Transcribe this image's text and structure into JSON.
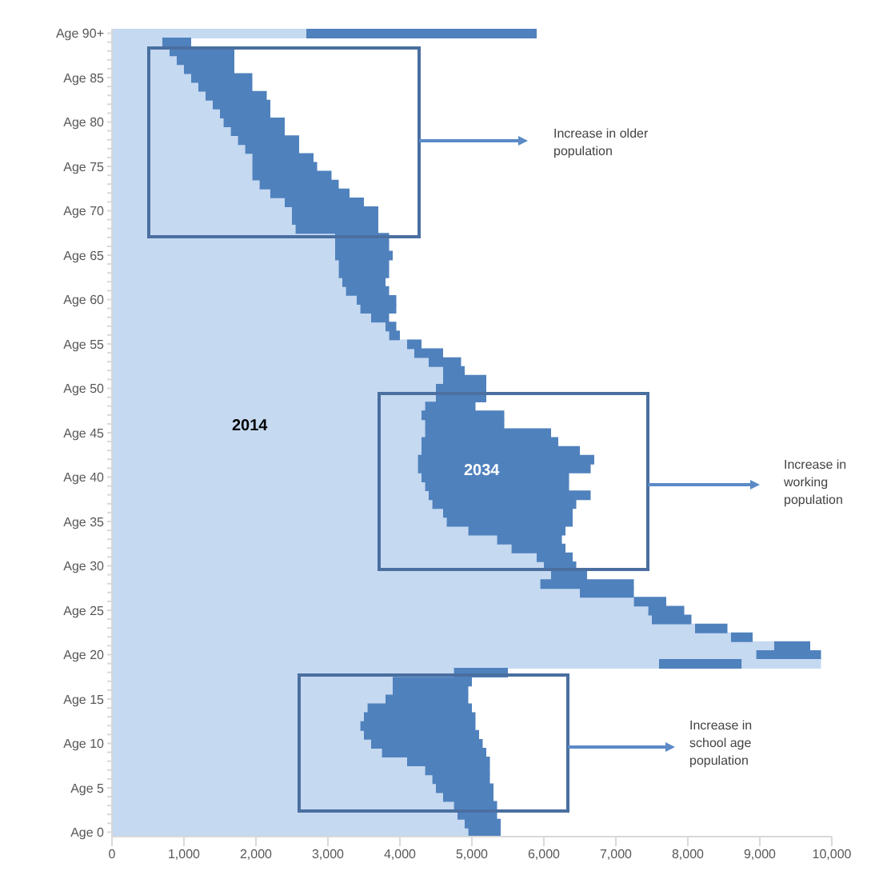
{
  "chart_data": {
    "type": "bar",
    "orientation": "horizontal",
    "stacked": true,
    "categories": [
      "Age 90+",
      null,
      null,
      null,
      null,
      "Age 85",
      null,
      null,
      null,
      null,
      "Age 80",
      null,
      null,
      null,
      null,
      "Age 75",
      null,
      null,
      null,
      null,
      "Age 70",
      null,
      null,
      null,
      null,
      "Age 65",
      null,
      null,
      null,
      null,
      "Age 60",
      null,
      null,
      null,
      null,
      "Age 55",
      null,
      null,
      null,
      null,
      "Age 50",
      null,
      null,
      null,
      null,
      "Age 45",
      null,
      null,
      null,
      null,
      "Age 40",
      null,
      null,
      null,
      null,
      "Age 35",
      null,
      null,
      null,
      null,
      "Age 30",
      null,
      null,
      null,
      null,
      "Age 25",
      null,
      null,
      null,
      null,
      "Age 20",
      null,
      null,
      null,
      null,
      "Age 15",
      null,
      null,
      null,
      null,
      "Age 10",
      null,
      null,
      null,
      null,
      "Age 5",
      null,
      null,
      null,
      null,
      "Age 0"
    ],
    "series": [
      {
        "color": "#c5d9f1",
        "values": [
          2700,
          700,
          800,
          900,
          1000,
          1100,
          1200,
          1300,
          1400,
          1500,
          1550,
          1650,
          1750,
          1850,
          1950,
          1950,
          1950,
          2050,
          2200,
          2400,
          2500,
          2500,
          2550,
          3100,
          3100,
          3100,
          3150,
          3150,
          3200,
          3250,
          3400,
          3450,
          3600,
          3800,
          3850,
          4100,
          4200,
          4400,
          4600,
          4600,
          4500,
          4500,
          4350,
          4300,
          4350,
          4350,
          4300,
          4300,
          4250,
          4250,
          4300,
          4350,
          4400,
          4450,
          4600,
          4650,
          4950,
          5350,
          5550,
          5900,
          6000,
          6100,
          5950,
          6500,
          7250,
          7450,
          7500,
          8100,
          8600,
          9200,
          8950,
          7600,
          4750,
          3900,
          3900,
          3800,
          3550,
          3500,
          3450,
          3500,
          3600,
          3750,
          4100,
          4350,
          4450,
          4500,
          4600,
          4750,
          4800,
          4900,
          4950
        ]
      },
      {
        "color": "#4f81bd",
        "values": [
          3200,
          400,
          900,
          800,
          700,
          850,
          750,
          850,
          800,
          700,
          850,
          750,
          850,
          750,
          850,
          900,
          1100,
          1100,
          1100,
          1100,
          1200,
          1200,
          1150,
          750,
          750,
          800,
          700,
          700,
          600,
          600,
          550,
          500,
          250,
          150,
          150,
          200,
          400,
          450,
          300,
          600,
          700,
          700,
          700,
          1150,
          1100,
          1750,
          1900,
          2200,
          2450,
          2400,
          2050,
          2000,
          2250,
          2000,
          1800,
          1750,
          1350,
          900,
          750,
          500,
          450,
          500,
          1300,
          750,
          450,
          500,
          550,
          450,
          300,
          500,
          900,
          1150,
          750,
          1100,
          1050,
          1150,
          1450,
          1550,
          1600,
          1600,
          1550,
          1450,
          1150,
          900,
          800,
          800,
          700,
          600,
          550,
          500,
          450
        ]
      },
      {
        "color": "#c5d9f1",
        "values": [
          null,
          null,
          null,
          null,
          null,
          null,
          null,
          null,
          null,
          null,
          null,
          null,
          null,
          null,
          null,
          null,
          null,
          null,
          null,
          null,
          null,
          null,
          null,
          null,
          null,
          null,
          null,
          null,
          null,
          null,
          null,
          null,
          null,
          null,
          null,
          null,
          null,
          null,
          null,
          null,
          null,
          null,
          null,
          null,
          null,
          null,
          null,
          null,
          null,
          null,
          null,
          null,
          null,
          null,
          null,
          null,
          null,
          null,
          null,
          null,
          null,
          null,
          null,
          null,
          null,
          null,
          null,
          null,
          null,
          null,
          null,
          1100,
          null,
          null,
          null,
          null,
          null,
          null,
          null,
          null,
          null,
          null,
          null,
          null,
          null,
          null,
          null,
          null,
          null,
          null,
          null
        ]
      }
    ],
    "xlim": [
      0,
      10000
    ],
    "xticks": [
      0,
      {
        "value": 1000,
        "label": "1,000"
      },
      {
        "value": 2000,
        "label": "2,000"
      },
      {
        "value": 3000,
        "label": "3,000"
      },
      {
        "value": 4000,
        "label": "4,000"
      },
      {
        "value": 5000,
        "label": "5,000"
      },
      {
        "value": 6000,
        "label": "6,000"
      },
      {
        "value": 7000,
        "label": "7,000"
      },
      {
        "value": 8000,
        "label": "8,000"
      },
      {
        "value": 9000,
        "label": "9,000"
      },
      {
        "value": 10000,
        "label": "10,000"
      }
    ],
    "annotations": [
      "2014",
      "2034",
      "Increase in older population",
      "Increase in working population",
      "Increase in school age population"
    ]
  }
}
